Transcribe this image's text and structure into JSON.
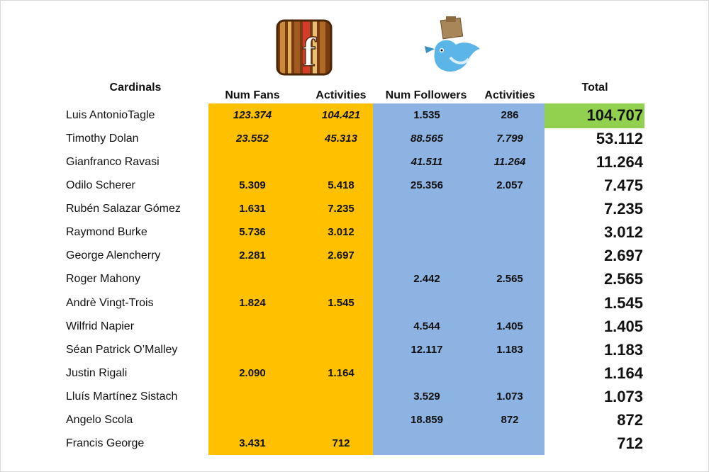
{
  "header": {
    "name": "Cardinals",
    "fb_fans": "Num Fans",
    "fb_activities": "Activities",
    "tw_followers": "Num Followers",
    "tw_activities": "Activities",
    "total": "Total"
  },
  "table": {
    "rows": [
      [
        "Luis AntonioTagle",
        "123.374",
        "104.421",
        "1.535",
        "286",
        "104.707"
      ],
      [
        "Timothy Dolan",
        "23.552",
        "45.313",
        "88.565",
        "7.799",
        "53.112"
      ],
      [
        "Gianfranco Ravasi",
        null,
        null,
        "41.511",
        "11.264",
        "11.264"
      ],
      [
        "Odilo Scherer",
        "5.309",
        "5.418",
        "25.356",
        "2.057",
        "7.475"
      ],
      [
        "Rubén Salazar Gómez",
        "1.631",
        "7.235",
        null,
        null,
        "7.235"
      ],
      [
        "Raymond Burke",
        "5.736",
        "3.012",
        null,
        null,
        "3.012"
      ],
      [
        "George Alencherry",
        "2.281",
        "2.697",
        null,
        null,
        "2.697"
      ],
      [
        "Roger Mahony",
        null,
        null,
        "2.442",
        "2.565",
        "2.565"
      ],
      [
        "Andrè Vingt-Trois",
        "1.824",
        "1.545",
        null,
        null,
        "1.545"
      ],
      [
        "Wilfrid Napier",
        null,
        null,
        "4.544",
        "1.405",
        "1.405"
      ],
      [
        "Séan Patrick O’Malley",
        null,
        null,
        "12.117",
        "1.183",
        "1.183"
      ],
      [
        "Justin Rigali",
        "2.090",
        "1.164",
        null,
        null,
        "1.164"
      ],
      [
        "Lluís Martínez Sistach",
        null,
        null,
        "3.529",
        "1.073",
        "1.073"
      ],
      [
        "Angelo Scola",
        null,
        null,
        "18.859",
        "872",
        "872"
      ],
      [
        "Francis George",
        "3.431",
        "712",
        null,
        null,
        "712"
      ]
    ]
  }
}
